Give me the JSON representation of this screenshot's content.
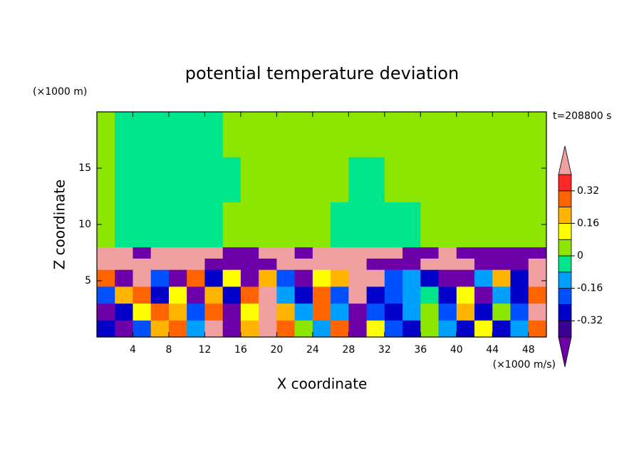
{
  "chart_data": {
    "type": "contour",
    "title": "potential temperature deviation",
    "xlabel": "X coordinate",
    "ylabel": "Z coordinate",
    "x_unit": "(×1000 m/s)",
    "y_unit": "(×1000 m)",
    "annotation": "t=208800 s",
    "xlim": [
      0,
      50
    ],
    "ylim": [
      0,
      20
    ],
    "xticks": [
      4,
      8,
      12,
      16,
      20,
      24,
      28,
      32,
      36,
      40,
      44,
      48
    ],
    "yticks": [
      5,
      10,
      15
    ],
    "x": [
      0,
      2,
      4,
      6,
      8,
      10,
      12,
      14,
      16,
      18,
      20,
      22,
      24,
      26,
      28,
      30,
      32,
      34,
      36,
      38,
      40,
      42,
      44,
      46,
      48,
      50
    ],
    "y": [
      0,
      1.5,
      3,
      4.5,
      6,
      7,
      8,
      12,
      16,
      20
    ],
    "z": [
      [
        -0.3,
        -0.44,
        -0.2,
        0.2,
        0.3,
        -0.1,
        0.44,
        -0.44,
        0.2,
        0.44,
        0.3,
        0.0,
        -0.1,
        0.3,
        -0.44,
        0.1,
        -0.2,
        -0.3,
        0.0,
        -0.1,
        -0.3,
        0.1,
        -0.3,
        -0.1,
        0.3
      ],
      [
        -0.44,
        -0.3,
        0.1,
        0.3,
        0.2,
        -0.2,
        0.3,
        -0.44,
        0.1,
        0.44,
        0.2,
        -0.1,
        0.3,
        -0.1,
        -0.44,
        -0.2,
        -0.3,
        -0.1,
        0.0,
        -0.2,
        0.2,
        -0.3,
        0.0,
        -0.2,
        0.44
      ],
      [
        -0.2,
        0.2,
        0.3,
        -0.3,
        0.1,
        -0.44,
        0.2,
        -0.3,
        0.3,
        0.44,
        -0.1,
        -0.3,
        0.3,
        -0.2,
        0.44,
        -0.3,
        -0.24,
        -0.12,
        -0.05,
        -0.3,
        0.1,
        -0.44,
        -0.1,
        -0.3,
        0.3
      ],
      [
        0.3,
        -0.44,
        0.44,
        -0.2,
        -0.44,
        0.3,
        -0.3,
        0.1,
        -0.44,
        0.2,
        -0.2,
        -0.44,
        0.1,
        0.2,
        0.44,
        0.44,
        -0.2,
        -0.1,
        -0.3,
        -0.44,
        -0.44,
        -0.1,
        0.2,
        -0.3,
        0.44
      ],
      [
        0.44,
        0.44,
        0.44,
        0.44,
        0.44,
        0.44,
        -0.44,
        -0.44,
        -0.44,
        -0.44,
        0.44,
        0.44,
        0.44,
        0.44,
        0.44,
        -0.44,
        -0.44,
        -0.44,
        0.44,
        0.44,
        0.44,
        -0.44,
        -0.44,
        -0.44,
        0.44
      ],
      [
        0.44,
        0.44,
        -0.44,
        0.44,
        0.44,
        0.44,
        0.44,
        -0.44,
        -0.44,
        0.44,
        0.44,
        -0.44,
        0.44,
        0.44,
        0.44,
        0.44,
        0.44,
        -0.44,
        -0.44,
        0.44,
        -0.44,
        -0.44,
        -0.44,
        -0.44,
        -0.44
      ],
      [
        0.04,
        -0.04,
        -0.04,
        -0.04,
        -0.04,
        -0.04,
        -0.04,
        0.04,
        0.04,
        0.04,
        0.04,
        0.04,
        0.04,
        -0.04,
        -0.04,
        -0.04,
        -0.04,
        -0.04,
        0.04,
        0.04,
        0.04,
        0.04,
        0.04,
        0.04,
        0.04
      ],
      [
        0.04,
        -0.04,
        -0.04,
        -0.04,
        -0.04,
        -0.04,
        -0.04,
        -0.04,
        0.04,
        0.04,
        0.04,
        0.04,
        0.04,
        0.04,
        -0.04,
        -0.04,
        0.04,
        0.04,
        0.04,
        0.04,
        0.04,
        0.04,
        0.04,
        0.04,
        0.04
      ],
      [
        0.04,
        -0.04,
        -0.04,
        -0.04,
        -0.04,
        -0.04,
        -0.04,
        0.04,
        0.04,
        0.04,
        0.04,
        0.04,
        0.04,
        0.04,
        0.04,
        0.04,
        0.04,
        0.04,
        0.04,
        0.04,
        0.04,
        0.04,
        0.04,
        0.04,
        0.04
      ]
    ],
    "levels": [
      -0.4,
      -0.32,
      -0.24,
      -0.16,
      -0.08,
      0,
      0.08,
      0.16,
      0.24,
      0.32,
      0.4
    ],
    "colors": [
      "#6e00aa",
      "#3c0096",
      "#0000c8",
      "#0050ff",
      "#00a0ff",
      "#00e68c",
      "#8ce600",
      "#ffff00",
      "#ffb400",
      "#ff6400",
      "#ff2828",
      "#f0a0a0"
    ],
    "colorbar_ticks": [
      -0.32,
      -0.16,
      0,
      0.16,
      0.32
    ]
  }
}
